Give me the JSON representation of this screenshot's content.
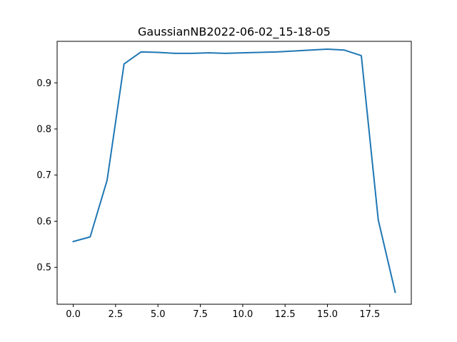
{
  "chart_data": {
    "type": "line",
    "title": "GaussianNB2022-06-02_15-18-05",
    "xlabel": "",
    "ylabel": "",
    "xlim": [
      -0.95,
      19.95
    ],
    "ylim": [
      0.42,
      0.99
    ],
    "grid": false,
    "x_ticks": [
      0.0,
      2.5,
      5.0,
      7.5,
      10.0,
      12.5,
      15.0,
      17.5
    ],
    "x_tick_labels": [
      "0.0",
      "2.5",
      "5.0",
      "7.5",
      "10.0",
      "12.5",
      "15.0",
      "17.5"
    ],
    "y_ticks": [
      0.5,
      0.6,
      0.7,
      0.8,
      0.9
    ],
    "y_tick_labels": [
      "0.5",
      "0.6",
      "0.7",
      "0.8",
      "0.9"
    ],
    "series": [
      {
        "color": "#1f77b4",
        "x": [
          0,
          1,
          2,
          3,
          4,
          5,
          6,
          7,
          8,
          9,
          10,
          11,
          12,
          13,
          14,
          15,
          16,
          17,
          18,
          19
        ],
        "y": [
          0.556,
          0.566,
          0.689,
          0.941,
          0.967,
          0.966,
          0.964,
          0.964,
          0.965,
          0.964,
          0.965,
          0.966,
          0.967,
          0.969,
          0.971,
          0.973,
          0.971,
          0.959,
          0.603,
          0.446
        ]
      }
    ]
  }
}
